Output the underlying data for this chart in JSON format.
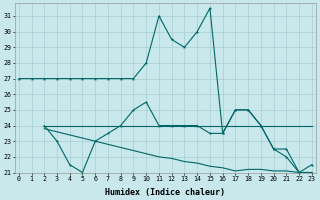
{
  "bg_color": "#c8e8ec",
  "grid_color": "#a8cdd2",
  "line_color": "#006666",
  "xlabel": "Humidex (Indice chaleur)",
  "xlim_min": -0.3,
  "xlim_max": 23.3,
  "ylim_min": 21,
  "ylim_max": 31.8,
  "yticks": [
    21,
    22,
    23,
    24,
    25,
    26,
    27,
    28,
    29,
    30,
    31
  ],
  "xticks": [
    0,
    1,
    2,
    3,
    4,
    5,
    6,
    7,
    8,
    9,
    10,
    11,
    12,
    13,
    14,
    15,
    16,
    17,
    18,
    19,
    20,
    21,
    22,
    23
  ],
  "series1_x": [
    0,
    1,
    2,
    3,
    4,
    5,
    6,
    7,
    8,
    9,
    10,
    11,
    12,
    13,
    14,
    15,
    16,
    17,
    18,
    19,
    20,
    21,
    22,
    23
  ],
  "series1_y": [
    27,
    27,
    27,
    27,
    27,
    27,
    27,
    27,
    27,
    27,
    28,
    31,
    29.5,
    29,
    30,
    31.5,
    23.5,
    25,
    25,
    24,
    22.5,
    22,
    21,
    21.5
  ],
  "series2_x": [
    2,
    3,
    4,
    5,
    6,
    7,
    8,
    9,
    10,
    11,
    12,
    13,
    14,
    15,
    16,
    17,
    18,
    19,
    20,
    21,
    22,
    23
  ],
  "series2_y": [
    24,
    23,
    21.5,
    21,
    23,
    23.5,
    24,
    25,
    25.5,
    24,
    24,
    24,
    24,
    23.5,
    23.5,
    25,
    25,
    24,
    22.5,
    22.5,
    21,
    21
  ],
  "series3_x": [
    2,
    3,
    4,
    5,
    6,
    7,
    8,
    9,
    10,
    11,
    12,
    13,
    14,
    15,
    16,
    17,
    18,
    19,
    20,
    21,
    22,
    23
  ],
  "series3_y": [
    24,
    24,
    24,
    24,
    24,
    24,
    24,
    24,
    24,
    24,
    24,
    24,
    24,
    24,
    24,
    24,
    24,
    24,
    24,
    24,
    24,
    24
  ],
  "series4_x": [
    2,
    3,
    4,
    5,
    6,
    7,
    8,
    9,
    10,
    11,
    12,
    13,
    14,
    15,
    16,
    17,
    18,
    19,
    20,
    21,
    22,
    23
  ],
  "series4_y": [
    23.8,
    23.6,
    23.4,
    23.2,
    23.0,
    22.8,
    22.6,
    22.4,
    22.2,
    22.0,
    21.9,
    21.7,
    21.6,
    21.4,
    21.3,
    21.1,
    21.2,
    21.2,
    21.1,
    21.1,
    21.0,
    21.0
  ]
}
